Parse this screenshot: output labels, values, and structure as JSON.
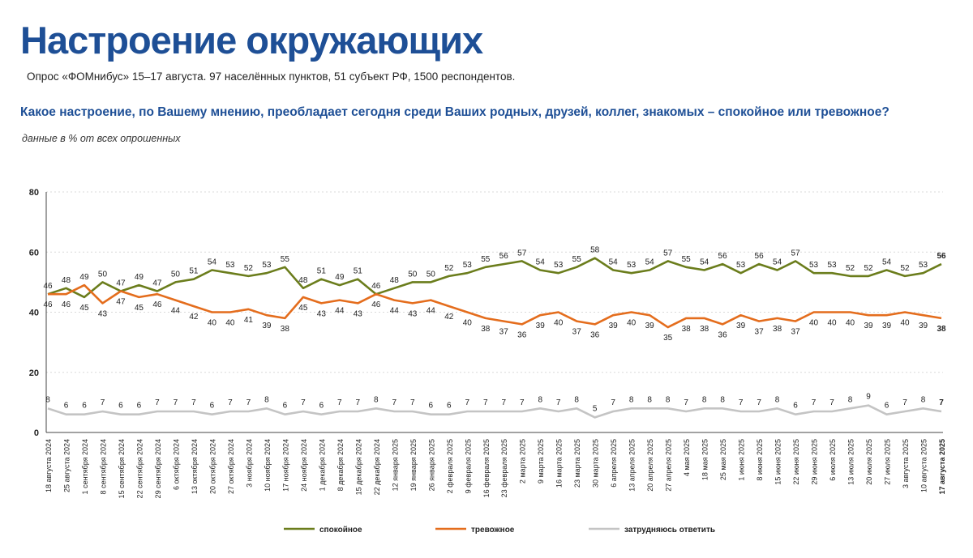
{
  "title": "Настроение окружающих",
  "subtitle": "Опрос «ФОМнибус» 15–17 августа. 97 населённых пунктов, 51 субъект РФ, 1500 респондентов.",
  "question": "Какое настроение, по Вашему мнению, преобладает сегодня среди Ваших родных, друзей, коллег, знакомых – спокойное или тревожное?",
  "note": "данные в % от всех опрошенных",
  "chart_data": {
    "type": "line",
    "ylim": [
      0,
      80
    ],
    "yticks": [
      "0",
      "20",
      "40",
      "60",
      "80"
    ],
    "categories": [
      "18 августа 2024",
      "25 августа 2024",
      "1 сентября 2024",
      "8 сентября 2024",
      "15 сентября 2024",
      "22 сентября 2024",
      "29 сентября 2024",
      "6 октября 2024",
      "13 октября 2024",
      "20 октября 2024",
      "27 октября 2024",
      "3 ноября 2024",
      "10 ноября 2024",
      "17 ноября 2024",
      "24 ноября 2024",
      "1 декабря 2024",
      "8 декабря 2024",
      "15 декабря 2024",
      "22 декабря 2024",
      "12 января 2025",
      "19 января 2025",
      "26 января 2025",
      "2 февраля 2025",
      "9 февраля 2025",
      "16 февраля 2025",
      "23 февраля 2025",
      "2 марта 2025",
      "9 марта 2025",
      "16 марта 2025",
      "23 марта 2025",
      "30 марта 2025",
      "6 апреля 2025",
      "13 апреля 2025",
      "20 апреля 2025",
      "27 апреля 2025",
      "4 мая 2025",
      "18 мая 2025",
      "25 мая 2025",
      "1 июня 2025",
      "8 июня 2025",
      "15 июня 2025",
      "22 июня 2025",
      "29 июня 2025",
      "6 июля 2025",
      "13 июля 2025",
      "20 июля 2025",
      "27 июля 2025",
      "3 августа 2025",
      "10 августа 2025",
      "17 августа 2025"
    ],
    "series": [
      {
        "name": "спокойное",
        "color": "#6b7d1c",
        "values": [
          46,
          48,
          45,
          50,
          47,
          49,
          47,
          50,
          51,
          54,
          53,
          52,
          53,
          55,
          48,
          51,
          49,
          51,
          46,
          48,
          50,
          50,
          52,
          53,
          55,
          56,
          57,
          54,
          53,
          55,
          58,
          54,
          53,
          54,
          57,
          55,
          54,
          56,
          53,
          56,
          54,
          57,
          53,
          53,
          52,
          52,
          54,
          52,
          53,
          56
        ]
      },
      {
        "name": "тревожное",
        "color": "#e46d1d",
        "values": [
          46,
          46,
          49,
          43,
          47,
          45,
          46,
          44,
          42,
          40,
          40,
          41,
          39,
          38,
          45,
          43,
          44,
          43,
          46,
          44,
          43,
          44,
          42,
          40,
          38,
          37,
          36,
          39,
          40,
          37,
          36,
          39,
          40,
          39,
          35,
          38,
          38,
          36,
          39,
          37,
          38,
          37,
          40,
          40,
          40,
          39,
          39,
          40,
          39,
          38
        ]
      },
      {
        "name": "затрудняюсь ответить",
        "color": "#c4c4c4",
        "values": [
          8,
          6,
          6,
          7,
          6,
          6,
          7,
          7,
          7,
          6,
          7,
          7,
          8,
          6,
          7,
          6,
          7,
          7,
          8,
          7,
          7,
          6,
          6,
          7,
          7,
          7,
          7,
          8,
          7,
          8,
          5,
          7,
          8,
          8,
          8,
          7,
          8,
          8,
          7,
          7,
          8,
          6,
          7,
          7,
          8,
          9,
          6,
          7,
          8,
          7
        ]
      }
    ],
    "legend": {
      "position": "bottom"
    }
  }
}
